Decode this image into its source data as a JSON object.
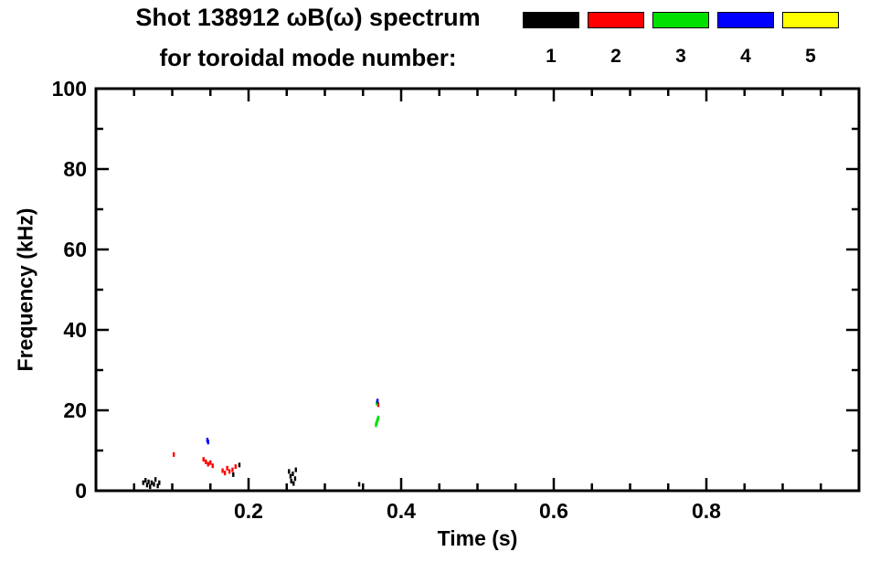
{
  "title": {
    "line1": "Shot 138912 ωB(ω) spectrum",
    "line2": "for toroidal mode number:"
  },
  "legend": {
    "entries": [
      {
        "label": "1",
        "color": "#000000"
      },
      {
        "label": "2",
        "color": "#ff0000"
      },
      {
        "label": "3",
        "color": "#00e000"
      },
      {
        "label": "4",
        "color": "#0000ff"
      },
      {
        "label": "5",
        "color": "#ffff00"
      }
    ]
  },
  "chart_data": {
    "type": "scatter",
    "title": "Shot 138912 ωB(ω) spectrum for toroidal mode number: 1 2 3 4 5",
    "xlabel": "Time (s)",
    "ylabel": "Frequency (kHz)",
    "xlim": [
      0,
      1.0
    ],
    "ylim": [
      0,
      100
    ],
    "x_ticks": [
      0.2,
      0.4,
      0.6,
      0.8
    ],
    "x_tick_labels": [
      "0.2",
      "0.4",
      "0.6",
      "0.8"
    ],
    "x_minor_step": 0.05,
    "y_ticks": [
      0,
      20,
      40,
      60,
      80,
      100
    ],
    "y_tick_labels": [
      "0",
      "20",
      "40",
      "60",
      "80",
      "100"
    ],
    "y_minor_step": 10,
    "grid": false,
    "legend_position": "top-right",
    "series": [
      {
        "name": "1",
        "color": "#000000",
        "points": [
          [
            0.062,
            2.0
          ],
          [
            0.065,
            2.6
          ],
          [
            0.067,
            1.4
          ],
          [
            0.069,
            2.2
          ],
          [
            0.071,
            1.0
          ],
          [
            0.073,
            2.0
          ],
          [
            0.076,
            1.6
          ],
          [
            0.078,
            2.8
          ],
          [
            0.081,
            1.2
          ],
          [
            0.083,
            2.0
          ],
          [
            0.18,
            4.0
          ],
          [
            0.188,
            6.4
          ],
          [
            0.253,
            4.8
          ],
          [
            0.255,
            3.6
          ],
          [
            0.256,
            2.4
          ],
          [
            0.258,
            4.2
          ],
          [
            0.259,
            1.8
          ],
          [
            0.261,
            3.0
          ],
          [
            0.262,
            5.2
          ],
          [
            0.345,
            1.6
          ]
        ]
      },
      {
        "name": "2",
        "color": "#ff0000",
        "points": [
          [
            0.102,
            9.0
          ],
          [
            0.141,
            7.8
          ],
          [
            0.144,
            7.2
          ],
          [
            0.147,
            6.6
          ],
          [
            0.15,
            7.0
          ],
          [
            0.153,
            6.2
          ],
          [
            0.166,
            5.0
          ],
          [
            0.169,
            4.4
          ],
          [
            0.172,
            5.6
          ],
          [
            0.175,
            4.8
          ],
          [
            0.179,
            5.2
          ],
          [
            0.183,
            6.0
          ],
          [
            0.37,
            21.4
          ]
        ]
      },
      {
        "name": "3",
        "color": "#00e000",
        "points": [
          [
            0.367,
            16.4
          ],
          [
            0.368,
            17.0
          ],
          [
            0.369,
            17.6
          ],
          [
            0.37,
            18.1
          ],
          [
            0.368,
            21.8
          ]
        ]
      },
      {
        "name": "4",
        "color": "#0000ff",
        "points": [
          [
            0.146,
            12.6
          ],
          [
            0.147,
            12.1
          ],
          [
            0.369,
            22.3
          ]
        ]
      },
      {
        "name": "5",
        "color": "#ffff00",
        "points": []
      }
    ]
  }
}
